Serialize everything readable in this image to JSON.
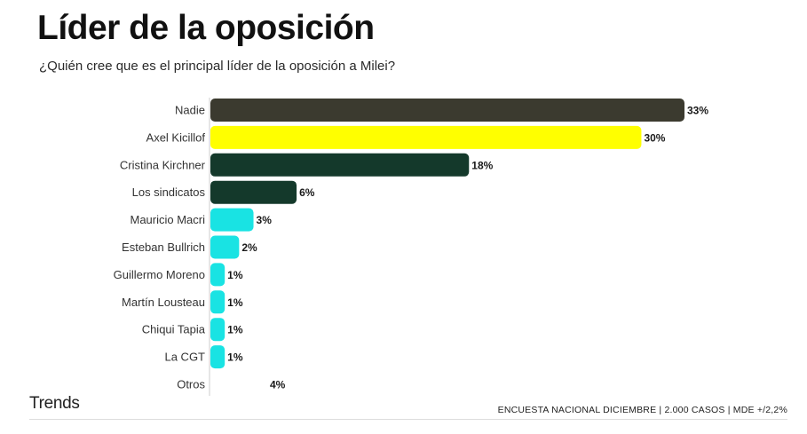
{
  "title": "Líder de la oposición",
  "subtitle": "¿Quién cree que es el principal líder de la oposición a Milei?",
  "brand": "Trends",
  "footnote": "ENCUESTA NACIONAL DICIEMBRE | 2.000 CASOS | MDE +/2,2%",
  "chart_data": {
    "type": "bar",
    "orientation": "horizontal",
    "title": "Líder de la oposición",
    "subtitle": "¿Quién cree que es el principal líder de la oposición a Milei?",
    "xlabel": "",
    "ylabel": "",
    "xlim": [
      0,
      33
    ],
    "grid": false,
    "unit": "%",
    "categories": [
      "Nadie",
      "Axel Kicillof",
      "Cristina Kirchner",
      "Los sindicatos",
      "Mauricio Macri",
      "Esteban Bullrich",
      "Guillermo Moreno",
      "Martín Lousteau",
      "Chiqui Tapia",
      "La CGT",
      "Otros"
    ],
    "values": [
      33,
      30,
      18,
      6,
      3,
      2,
      1,
      1,
      1,
      1,
      4
    ],
    "value_labels": [
      "33%",
      "30%",
      "18%",
      "6%",
      "3%",
      "2%",
      "1%",
      "1%",
      "1%",
      "1%",
      "4%"
    ],
    "colors": [
      "#3b3a2f",
      "#ffff00",
      "#14392b",
      "#14392b",
      "#19e3e3",
      "#19e3e3",
      "#19e3e3",
      "#19e3e3",
      "#19e3e3",
      "#19e3e3",
      "#ffffff"
    ]
  }
}
